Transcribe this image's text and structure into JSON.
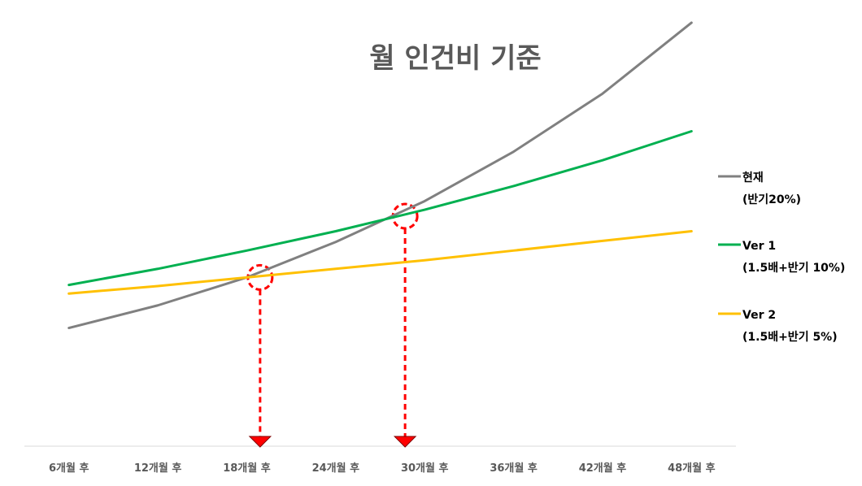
{
  "chart_data": {
    "type": "line",
    "title": "월 인건비 기준",
    "xlabel": "",
    "ylabel": "",
    "categories": [
      "6개월 후",
      "12개월 후",
      "18개월 후",
      "24개월 후",
      "30개월 후",
      "36개월 후",
      "42개월 후",
      "48개월 후"
    ],
    "ylim": [
      0,
      400
    ],
    "grid": false,
    "y_axis_visible": false,
    "legend_position": "right",
    "series": [
      {
        "name": "현재",
        "name_line2": "(반기20%)",
        "color": "#808080",
        "values": [
          110,
          131,
          157,
          190,
          228,
          274,
          328,
          394
        ]
      },
      {
        "name": "Ver 1",
        "name_line2": "(1.5배+반기 10%)",
        "color": "#00b050",
        "values": [
          150,
          165,
          182,
          200,
          220,
          242,
          266,
          293
        ]
      },
      {
        "name": "Ver 2",
        "name_line2": "(1.5배+반기 5%)",
        "color": "#ffc000",
        "values": [
          142,
          149,
          157,
          165,
          173,
          182,
          191,
          200
        ]
      }
    ],
    "annotations": [
      {
        "type": "crossover-marker",
        "series": [
          "현재",
          "Ver 2"
        ],
        "x_position": 2.15,
        "value": 157,
        "color": "#ff0000"
      },
      {
        "type": "crossover-marker",
        "series": [
          "현재",
          "Ver 1"
        ],
        "x_position": 3.78,
        "value": 214,
        "color": "#ff0000"
      }
    ]
  }
}
